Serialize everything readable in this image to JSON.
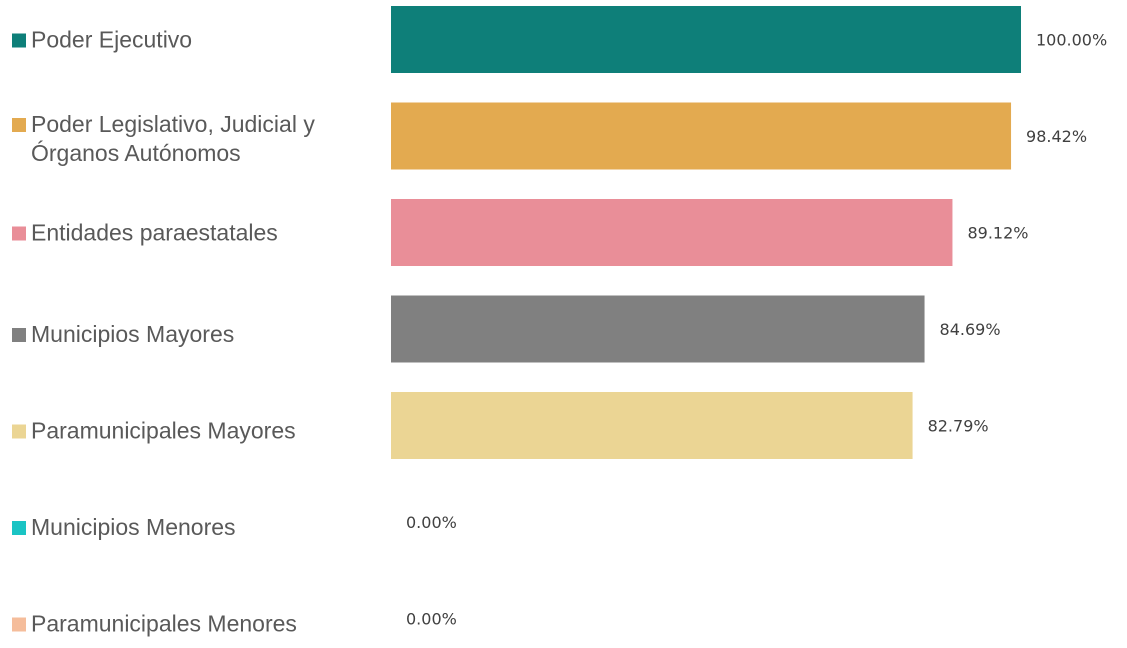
{
  "chart_data": {
    "type": "bar",
    "orientation": "horizontal",
    "categories": [
      [
        "Poder Ejecutivo"
      ],
      [
        "Poder Legislativo, Judicial y",
        "Órganos Autónomos"
      ],
      [
        "Entidades paraestatales"
      ],
      [
        "Municipios Mayores"
      ],
      [
        "Paramunicipales Mayores"
      ],
      [
        "Municipios Menores"
      ],
      [
        "Paramunicipales Menores"
      ]
    ],
    "values": [
      100.0,
      98.42,
      89.12,
      84.69,
      82.79,
      0.0,
      0.0
    ],
    "value_labels": [
      "100.00%",
      "98.42%",
      "89.12%",
      "84.69%",
      "82.79%",
      "0.00%",
      "0.00%"
    ],
    "colors": [
      "#0e7f79",
      "#e3aa50",
      "#e98e98",
      "#808080",
      "#ebd594",
      "#1ac4c4",
      "#f5bd9b"
    ],
    "xlim": [
      0,
      100
    ],
    "grid": false,
    "legend": "left"
  }
}
